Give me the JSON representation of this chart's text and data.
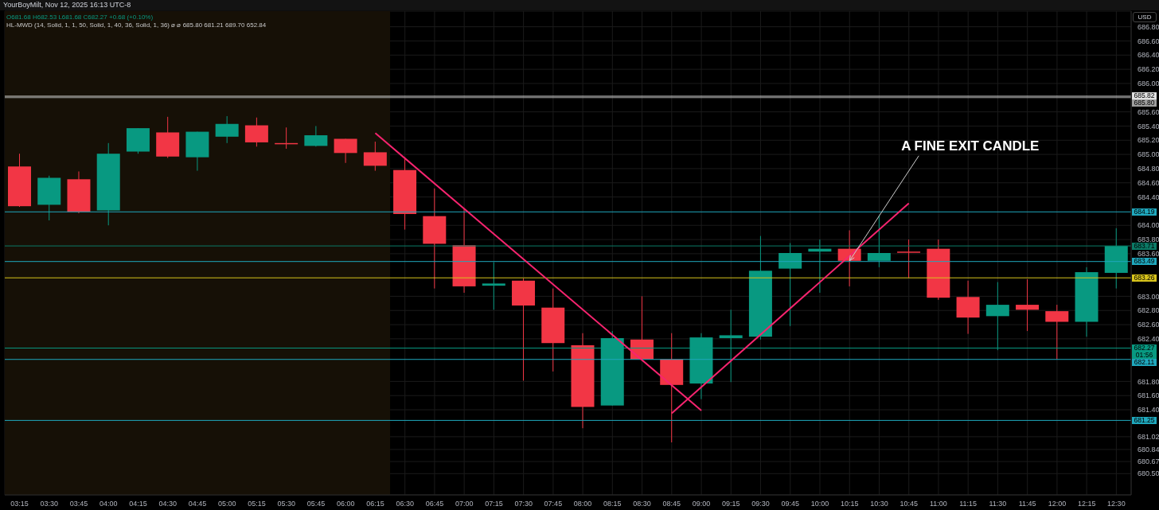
{
  "chart_data": {
    "type": "candlestick",
    "categories": [
      "03:15",
      "03:30",
      "03:45",
      "04:00",
      "04:15",
      "04:30",
      "04:45",
      "05:00",
      "05:15",
      "05:30",
      "05:45",
      "06:00",
      "06:15",
      "06:30",
      "06:45",
      "07:00",
      "07:15",
      "07:30",
      "07:45",
      "08:00",
      "08:15",
      "08:30",
      "08:45",
      "09:00",
      "09:15",
      "09:30",
      "09:45",
      "10:00",
      "10:15",
      "10:30",
      "10:45",
      "11:00",
      "11:15",
      "11:30",
      "11:45",
      "12:00",
      "12:15",
      "12:30"
    ],
    "ohlc": [
      [
        684.83,
        685.01,
        684.26,
        684.27
      ],
      [
        684.29,
        684.7,
        684.07,
        684.67
      ],
      [
        684.65,
        684.76,
        684.17,
        684.19
      ],
      [
        684.21,
        685.16,
        684.0,
        685.01
      ],
      [
        685.04,
        685.37,
        685.01,
        685.37
      ],
      [
        685.31,
        685.53,
        684.95,
        684.97
      ],
      [
        684.96,
        685.32,
        684.77,
        685.32
      ],
      [
        685.25,
        685.54,
        685.16,
        685.43
      ],
      [
        685.41,
        685.52,
        685.11,
        685.17
      ],
      [
        685.16,
        685.38,
        685.08,
        685.15
      ],
      [
        685.12,
        685.4,
        685.11,
        685.27
      ],
      [
        685.22,
        685.22,
        684.88,
        685.02
      ],
      [
        685.03,
        685.18,
        684.77,
        684.84
      ],
      [
        684.78,
        684.96,
        683.94,
        684.16
      ],
      [
        684.13,
        684.52,
        683.11,
        683.74
      ],
      [
        683.72,
        684.23,
        683.05,
        683.14
      ],
      [
        683.15,
        683.48,
        682.81,
        683.18
      ],
      [
        683.22,
        683.25,
        681.81,
        682.87
      ],
      [
        682.84,
        683.11,
        681.94,
        682.34
      ],
      [
        682.31,
        682.48,
        681.14,
        681.44
      ],
      [
        681.46,
        682.51,
        681.46,
        682.41
      ],
      [
        682.39,
        683.0,
        682.11,
        682.11
      ],
      [
        682.11,
        682.48,
        680.94,
        681.75
      ],
      [
        681.77,
        682.48,
        681.55,
        682.42
      ],
      [
        682.41,
        682.81,
        681.79,
        682.45
      ],
      [
        682.43,
        683.85,
        682.39,
        683.36
      ],
      [
        683.39,
        683.75,
        682.58,
        683.61
      ],
      [
        683.63,
        683.8,
        683.05,
        683.67
      ],
      [
        683.67,
        683.93,
        683.14,
        683.5
      ],
      [
        683.5,
        684.14,
        683.41,
        683.61
      ],
      [
        683.63,
        683.8,
        683.26,
        683.62
      ],
      [
        683.67,
        683.8,
        682.95,
        682.98
      ],
      [
        682.99,
        683.22,
        682.47,
        682.7
      ],
      [
        682.72,
        683.2,
        682.24,
        682.88
      ],
      [
        682.88,
        683.24,
        682.51,
        682.81
      ],
      [
        682.79,
        682.88,
        682.11,
        682.64
      ],
      [
        682.64,
        683.41,
        682.43,
        683.34
      ],
      [
        683.33,
        683.96,
        683.11,
        683.71
      ]
    ],
    "colors": [
      "#f23645",
      "#089981",
      "#f23645",
      "#089981",
      "#089981",
      "#f23645",
      "#089981",
      "#089981",
      "#f23645",
      "#f23645",
      "#089981",
      "#f23645",
      "#f23645",
      "#f23645",
      "#f23645",
      "#f23645",
      "#089981",
      "#f23645",
      "#f23645",
      "#f23645",
      "#089981",
      "#f23645",
      "#f23645",
      "#089981",
      "#089981",
      "#089981",
      "#089981",
      "#089981",
      "#f23645",
      "#089981",
      "#f23645",
      "#f23645",
      "#f23645",
      "#089981",
      "#f23645",
      "#f23645",
      "#089981",
      "#089981"
    ],
    "series": [
      {
        "type": "line",
        "x": [
          "06:15",
          "09:00"
        ],
        "values": [
          685.3,
          681.39
        ],
        "color": "#f7246f"
      },
      {
        "type": "line",
        "x": [
          "08:45",
          "10:45"
        ],
        "values": [
          681.35,
          684.31
        ],
        "color": "#f7246f"
      }
    ],
    "ylim": [
      680.2,
      687.02
    ],
    "yticks": [
      {
        "value": 686.8,
        "label": "686.80"
      },
      {
        "value": 686.6,
        "label": "686.60"
      },
      {
        "value": 686.4,
        "label": "686.40"
      },
      {
        "value": 686.2,
        "label": "686.20"
      },
      {
        "value": 686.0,
        "label": "686.00"
      },
      {
        "value": 685.6,
        "label": "685.60"
      },
      {
        "value": 685.4,
        "label": "685.40"
      },
      {
        "value": 685.2,
        "label": "685.20"
      },
      {
        "value": 685.0,
        "label": "685.00"
      },
      {
        "value": 684.8,
        "label": "684.80"
      },
      {
        "value": 684.6,
        "label": "684.60"
      },
      {
        "value": 684.4,
        "label": "684.40"
      },
      {
        "value": 684.0,
        "label": "684.00"
      },
      {
        "value": 683.8,
        "label": "683.80"
      },
      {
        "value": 683.6,
        "label": "683.60"
      },
      {
        "value": 683.0,
        "label": "683.00"
      },
      {
        "value": 682.8,
        "label": "682.80"
      },
      {
        "value": 682.6,
        "label": "682.60"
      },
      {
        "value": 682.4,
        "label": "682.40"
      },
      {
        "value": 681.8,
        "label": "681.80"
      },
      {
        "value": 681.6,
        "label": "681.60"
      },
      {
        "value": 681.4,
        "label": "681.40"
      },
      {
        "value": 681.02,
        "label": "681.02"
      },
      {
        "value": 680.84,
        "label": "680.84"
      },
      {
        "value": 680.67,
        "label": "680.67"
      },
      {
        "value": 680.5,
        "label": "680.50"
      }
    ],
    "grid": true,
    "ref_lines": [
      {
        "axis": "y",
        "value": 685.82,
        "label": "685.82",
        "color": "#e0e0e0"
      },
      {
        "axis": "y",
        "value": 685.8,
        "label": "685.80",
        "color": "#9e9e9e"
      },
      {
        "axis": "y",
        "value": 684.19,
        "label": "684.19",
        "color": "#1fa8bd"
      },
      {
        "axis": "y",
        "value": 683.71,
        "label": "683.71",
        "color": "#0b7a66"
      },
      {
        "axis": "y",
        "value": 683.49,
        "label": "683.49",
        "color": "#1fa8bd"
      },
      {
        "axis": "y",
        "value": 683.26,
        "label": "683.26",
        "color": "#d8c41c"
      },
      {
        "axis": "y",
        "value": 682.27,
        "label": "682.27\n01:56",
        "color": "#089981"
      },
      {
        "axis": "y",
        "value": 682.11,
        "label": "682.11",
        "color": "#1fa8bd"
      },
      {
        "axis": "y",
        "value": 681.25,
        "label": "681.25",
        "color": "#1fa8bd"
      }
    ],
    "bands": [
      {
        "axis": "x",
        "from": "03:15",
        "to": "06:15",
        "color": "#161006"
      }
    ],
    "annotations": [
      "YourBoyMilt, Nov 12, 2025 16:13 UTC-8",
      "O681.68 H682.53 L681.68 C682.27 +0.68 (+0.10%)",
      "HL-MWD (14, Solid, 1, 1, 50, Solid, 1, 40, 36, Solid, 1, 36) ⌀ ⌀ 685.80 681.21 689.70 652.84",
      "USD",
      {
        "text": "A FINE EXIT CANDLE",
        "x": "10:15",
        "y": 683.5
      }
    ]
  }
}
